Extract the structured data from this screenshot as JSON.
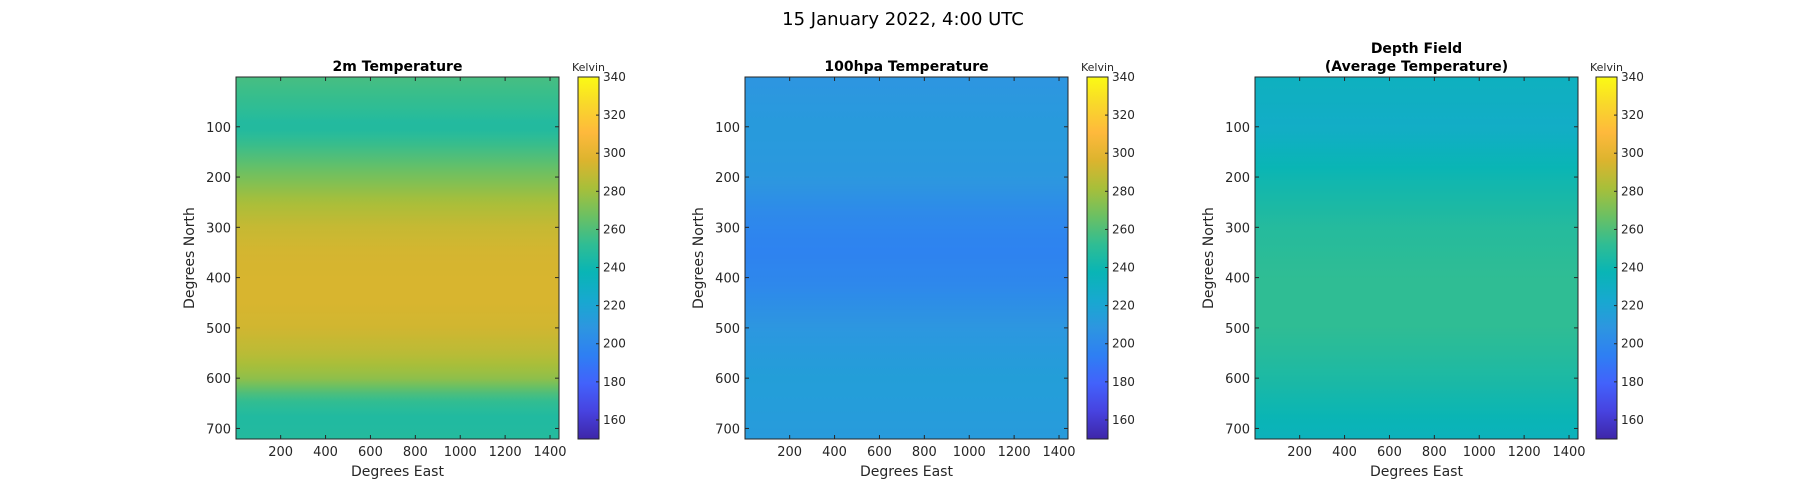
{
  "suptitle": "15 January 2022, 4:00 UTC",
  "colormap": [
    "#3e26a8",
    "#4743e0",
    "#4262fb",
    "#2e7ff3",
    "#2d96e0",
    "#17a9cf",
    "#09b5b5",
    "#30bd93",
    "#6bc063",
    "#a7bf3a",
    "#dcb42e",
    "#feb93c",
    "#f9d72b",
    "#fafa14"
  ],
  "chart_data": [
    {
      "type": "heatmap",
      "title": [
        "2m Temperature"
      ],
      "xlabel": "Degrees East",
      "ylabel": "Degrees North",
      "x_ticks": [
        200,
        400,
        600,
        800,
        1000,
        1200,
        1400
      ],
      "y_ticks": [
        100,
        200,
        300,
        400,
        500,
        600,
        700
      ],
      "xlim": [
        1,
        1440
      ],
      "ylim": [
        1,
        721
      ],
      "colorbar": {
        "label": "Kelvin",
        "range": [
          150,
          340
        ],
        "ticks": [
          160,
          180,
          200,
          220,
          240,
          260,
          280,
          300,
          320,
          340
        ]
      },
      "field_profile_kelvin": {
        "latitude_rows": [
          0,
          60,
          100,
          150,
          200,
          250,
          300,
          350,
          400,
          450,
          500,
          550,
          600,
          640,
          680,
          721
        ],
        "values": [
          258,
          252,
          246,
          258,
          270,
          282,
          290,
          294,
          295,
          295,
          293,
          287,
          276,
          254,
          246,
          248
        ]
      }
    },
    {
      "type": "heatmap",
      "title": [
        "100hpa Temperature"
      ],
      "xlabel": "Degrees East",
      "ylabel": "Degrees North",
      "x_ticks": [
        200,
        400,
        600,
        800,
        1000,
        1200,
        1400
      ],
      "y_ticks": [
        100,
        200,
        300,
        400,
        500,
        600,
        700
      ],
      "xlim": [
        1,
        1440
      ],
      "ylim": [
        1,
        721
      ],
      "colorbar": {
        "label": "Kelvin",
        "range": [
          150,
          340
        ],
        "ticks": [
          160,
          180,
          200,
          220,
          240,
          260,
          280,
          300,
          320,
          340
        ]
      },
      "field_profile_kelvin": {
        "latitude_rows": [
          0,
          100,
          200,
          280,
          350,
          420,
          500,
          600,
          721
        ],
        "values": [
          208,
          212,
          210,
          200,
          196,
          200,
          209,
          215,
          212
        ]
      }
    },
    {
      "type": "heatmap",
      "title": [
        "Depth Field",
        "(Average Temperature)"
      ],
      "xlabel": "Degrees East",
      "ylabel": "Degrees North",
      "x_ticks": [
        200,
        400,
        600,
        800,
        1000,
        1200,
        1400
      ],
      "y_ticks": [
        100,
        200,
        300,
        400,
        500,
        600,
        700
      ],
      "xlim": [
        1,
        1440
      ],
      "ylim": [
        1,
        721
      ],
      "colorbar": {
        "label": "Kelvin",
        "range": [
          150,
          340
        ],
        "ticks": [
          160,
          180,
          200,
          220,
          240,
          260,
          280,
          300,
          320,
          340
        ]
      },
      "field_profile_kelvin": {
        "latitude_rows": [
          0,
          100,
          200,
          300,
          400,
          500,
          600,
          721
        ],
        "values": [
          232,
          228,
          240,
          248,
          252,
          252,
          245,
          234
        ]
      }
    }
  ]
}
